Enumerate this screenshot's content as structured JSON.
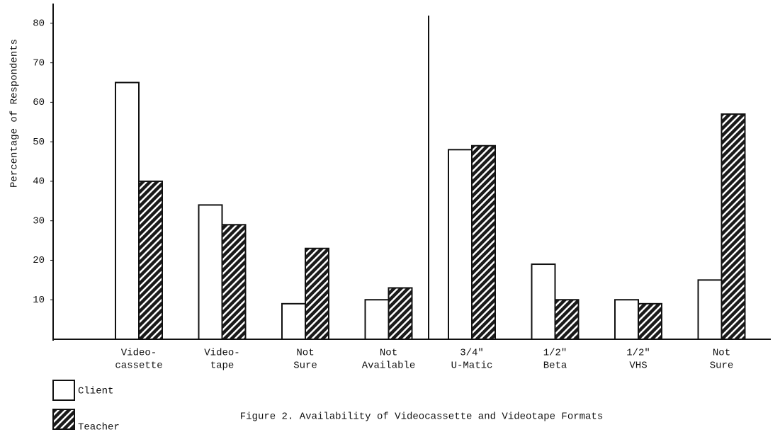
{
  "chart_data": {
    "type": "bar",
    "title": "Figure 2.  Availability of Videocassette and Videotape Formats",
    "y_label": "Percentage of Respondents",
    "categories": [
      [
        "Video-",
        "cassette"
      ],
      [
        "Video-",
        "tape"
      ],
      [
        "Not",
        "Sure"
      ],
      [
        "Not",
        "Available"
      ],
      [
        "3/4\"",
        "U-Matic"
      ],
      [
        "1/2\"",
        "Beta"
      ],
      [
        "1/2\"",
        "VHS"
      ],
      [
        "Not",
        "Sure"
      ]
    ],
    "series": [
      {
        "name": "Client",
        "color": "#ffffff",
        "values": [
          65,
          34,
          9,
          10,
          48,
          19,
          10,
          15
        ]
      },
      {
        "name": "Teacher",
        "color": "#1a1a1a",
        "pattern": "hatched",
        "values": [
          40,
          29,
          23,
          13,
          49,
          10,
          9,
          57
        ]
      }
    ],
    "ylim": [
      0,
      85
    ],
    "yticks": [
      10,
      20,
      30,
      40,
      50,
      60,
      70,
      80
    ]
  }
}
